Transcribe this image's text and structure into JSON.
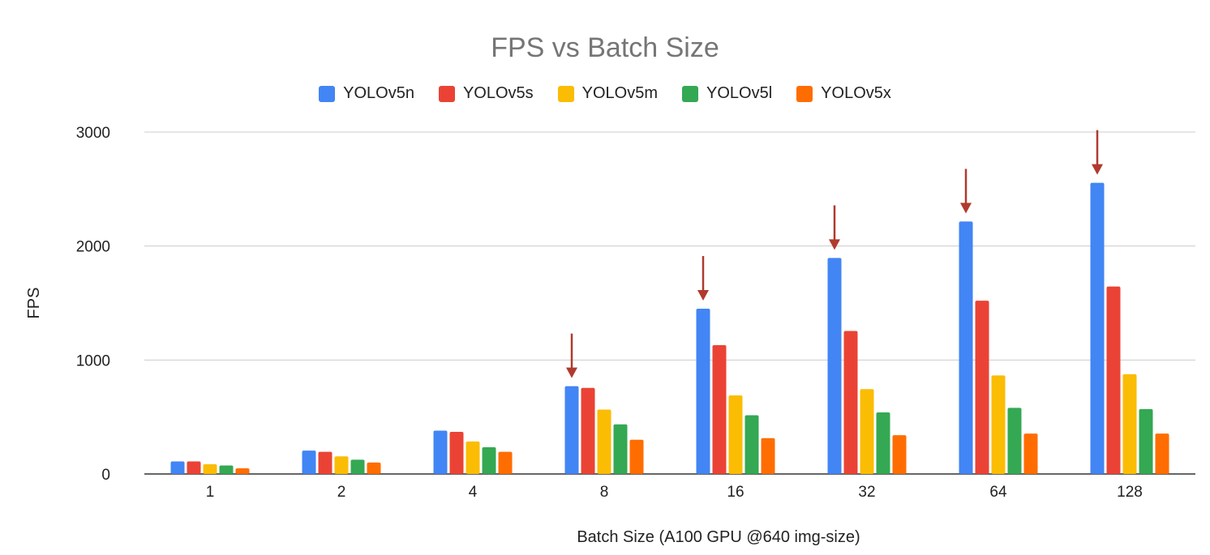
{
  "chart_data": {
    "type": "bar",
    "title": "FPS vs Batch Size",
    "xlabel": "Batch Size (A100 GPU @640 img-size)",
    "ylabel": "FPS",
    "ylim": [
      0,
      3000
    ],
    "yticks": [
      "0",
      "1000",
      "2000",
      "3000"
    ],
    "ytick_values": [
      0,
      1000,
      2000,
      3000
    ],
    "grid": true,
    "legend_position": "top",
    "categories": [
      "1",
      "2",
      "4",
      "8",
      "16",
      "32",
      "64",
      "128"
    ],
    "series": [
      {
        "name": "YOLOv5n",
        "color": "#4285F4",
        "values": [
          110,
          205,
          380,
          770,
          1450,
          1895,
          2215,
          2555
        ]
      },
      {
        "name": "YOLOv5s",
        "color": "#EA4335",
        "values": [
          110,
          195,
          370,
          755,
          1130,
          1255,
          1520,
          1645
        ]
      },
      {
        "name": "YOLOv5m",
        "color": "#FBBC04",
        "values": [
          85,
          155,
          285,
          565,
          690,
          745,
          865,
          875
        ]
      },
      {
        "name": "YOLOv5l",
        "color": "#34A853",
        "values": [
          75,
          125,
          235,
          435,
          515,
          540,
          580,
          570
        ]
      },
      {
        "name": "YOLOv5x",
        "color": "#FF6D01",
        "values": [
          50,
          100,
          195,
          300,
          315,
          340,
          355,
          355
        ]
      }
    ],
    "annotations": {
      "type": "arrow",
      "color": "#B03A2E",
      "points_at": "YOLOv5n",
      "categories": [
        "8",
        "16",
        "32",
        "64",
        "128"
      ]
    }
  }
}
